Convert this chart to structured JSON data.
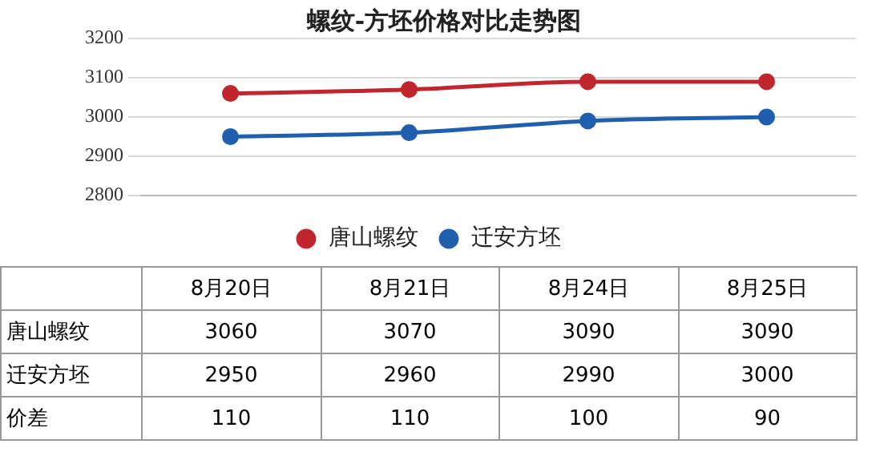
{
  "chart_data": {
    "type": "line",
    "title": "螺纹-方坯价格对比走势图",
    "categories": [
      "8月20日",
      "8月21日",
      "8月24日",
      "8月25日"
    ],
    "series": [
      {
        "name": "唐山螺纹",
        "color": "#c0262d",
        "values": [
          3060,
          3070,
          3090,
          3090
        ]
      },
      {
        "name": "迁安方坯",
        "color": "#1f5fae",
        "values": [
          2950,
          2960,
          2990,
          3000
        ]
      }
    ],
    "ylim": [
      2800,
      3200
    ],
    "yticks": [
      2800,
      2900,
      3000,
      3100,
      3200
    ],
    "grid": "y",
    "legend": "bottom",
    "marker": "circle",
    "tick_labels": "y",
    "data_labels": true,
    "annotations": [
      "价差",
      "110",
      "110",
      "100",
      "90"
    ]
  }
}
